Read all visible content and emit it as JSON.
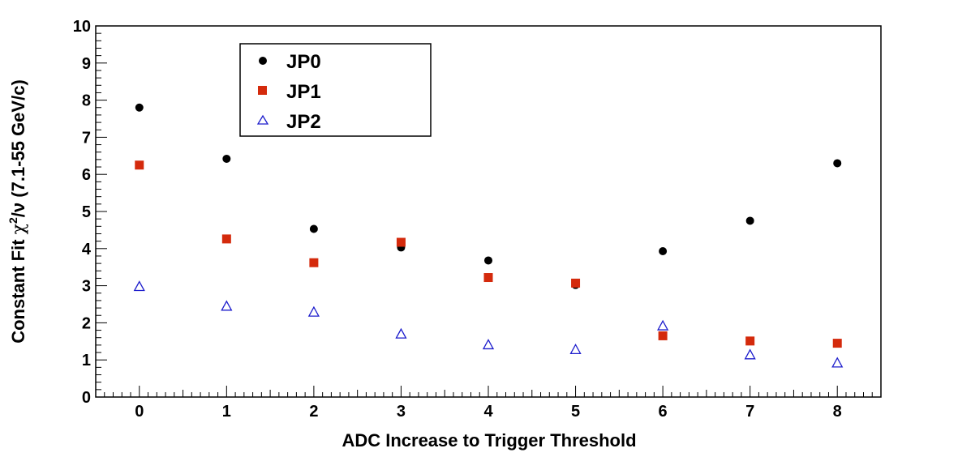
{
  "chart_data": {
    "type": "scatter",
    "title": "",
    "xlabel": "ADC Increase to Trigger Threshold",
    "ylabel_prefix": "Constant Fit ",
    "ylabel_chi": "χ",
    "ylabel_sup": "2",
    "ylabel_suffix": "/ν (7.1-55 GeV/c)",
    "xlim": [
      -0.5,
      8.5
    ],
    "ylim": [
      0,
      10
    ],
    "x_ticks": [
      0,
      1,
      2,
      3,
      4,
      5,
      6,
      7,
      8
    ],
    "x_tick_labels": [
      "0",
      "1",
      "2",
      "3",
      "4",
      "5",
      "6",
      "7",
      "8"
    ],
    "y_ticks": [
      0,
      1,
      2,
      3,
      4,
      5,
      6,
      7,
      8,
      9,
      10
    ],
    "y_tick_labels": [
      "0",
      "1",
      "2",
      "3",
      "4",
      "5",
      "6",
      "7",
      "8",
      "9",
      "10"
    ],
    "grid": false,
    "legend_position": "top-left",
    "series": [
      {
        "name": "JP0",
        "marker": "circle",
        "color": "#000000",
        "x": [
          0,
          1,
          2,
          3,
          4,
          5,
          6,
          7,
          8
        ],
        "y": [
          7.8,
          6.42,
          4.53,
          4.03,
          3.68,
          3.02,
          3.93,
          4.75,
          6.3
        ]
      },
      {
        "name": "JP1",
        "marker": "square",
        "color": "#d42a0c",
        "x": [
          0,
          1,
          2,
          3,
          4,
          5,
          6,
          7,
          8
        ],
        "y": [
          6.25,
          4.26,
          3.62,
          4.17,
          3.22,
          3.07,
          1.65,
          1.51,
          1.45
        ]
      },
      {
        "name": "JP2",
        "marker": "triangle-open",
        "color": "#1c1ccc",
        "x": [
          0,
          1,
          2,
          3,
          4,
          5,
          6,
          7,
          8
        ],
        "y": [
          2.98,
          2.45,
          2.29,
          1.7,
          1.41,
          1.28,
          1.92,
          1.14,
          0.92
        ]
      }
    ]
  }
}
